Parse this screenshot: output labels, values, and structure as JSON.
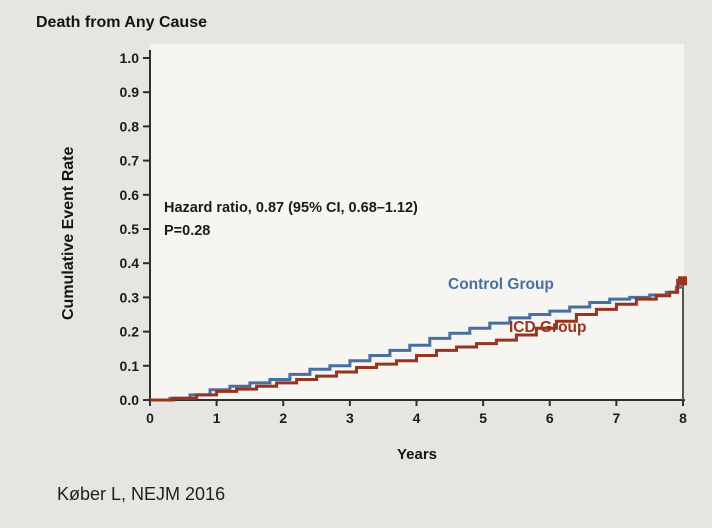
{
  "page": {
    "title": "Death from Any Cause",
    "citation": "Køber L, NEJM 2016"
  },
  "chart_data": {
    "type": "line",
    "subtype": "kaplan-meier-step",
    "title": "Death from Any Cause",
    "xlabel": "Years",
    "ylabel": "Cumulative Event Rate",
    "xlim": [
      0,
      8
    ],
    "ylim": [
      0,
      1.0
    ],
    "x_ticks": [
      0,
      1,
      2,
      3,
      4,
      5,
      6,
      7,
      8
    ],
    "x_tick_labels": [
      "0",
      "1",
      "2",
      "3",
      "4",
      "5",
      "6",
      "7",
      "8"
    ],
    "y_ticks": [
      0,
      0.1,
      0.2,
      0.3,
      0.4,
      0.5,
      0.6,
      0.7,
      0.8,
      0.9,
      1.0
    ],
    "y_tick_labels": [
      "0.0",
      "0.1",
      "0.2",
      "0.3",
      "0.4",
      "0.5",
      "0.6",
      "0.7",
      "0.8",
      "0.9",
      "1.0"
    ],
    "grid": false,
    "legend": "inline-labels",
    "annotation": {
      "line1": "Hazard ratio, 0.87 (95% CI, 0.68–1.12)",
      "line2": "P=0.28"
    },
    "axis_color": "#2e2e2e",
    "series": [
      {
        "name": "Control Group",
        "color": "#4a6f9f",
        "end_marker": false,
        "points": [
          [
            0,
            0
          ],
          [
            0.3,
            0.005
          ],
          [
            0.6,
            0.015
          ],
          [
            0.9,
            0.03
          ],
          [
            1.2,
            0.04
          ],
          [
            1.5,
            0.05
          ],
          [
            1.8,
            0.06
          ],
          [
            2.1,
            0.075
          ],
          [
            2.4,
            0.09
          ],
          [
            2.7,
            0.1
          ],
          [
            3.0,
            0.115
          ],
          [
            3.3,
            0.13
          ],
          [
            3.6,
            0.145
          ],
          [
            3.9,
            0.16
          ],
          [
            4.2,
            0.18
          ],
          [
            4.5,
            0.195
          ],
          [
            4.8,
            0.21
          ],
          [
            5.1,
            0.225
          ],
          [
            5.4,
            0.24
          ],
          [
            5.7,
            0.25
          ],
          [
            6.0,
            0.26
          ],
          [
            6.3,
            0.272
          ],
          [
            6.6,
            0.285
          ],
          [
            6.9,
            0.295
          ],
          [
            7.2,
            0.3
          ],
          [
            7.5,
            0.307
          ],
          [
            7.75,
            0.315
          ],
          [
            7.9,
            0.33
          ],
          [
            8,
            0.33
          ]
        ]
      },
      {
        "name": "ICD Group",
        "color": "#97331e",
        "end_marker": true,
        "points": [
          [
            0,
            0
          ],
          [
            0.35,
            0.005
          ],
          [
            0.7,
            0.015
          ],
          [
            1.0,
            0.025
          ],
          [
            1.3,
            0.032
          ],
          [
            1.6,
            0.04
          ],
          [
            1.9,
            0.05
          ],
          [
            2.2,
            0.06
          ],
          [
            2.5,
            0.07
          ],
          [
            2.8,
            0.082
          ],
          [
            3.1,
            0.095
          ],
          [
            3.4,
            0.105
          ],
          [
            3.7,
            0.115
          ],
          [
            4.0,
            0.13
          ],
          [
            4.3,
            0.145
          ],
          [
            4.6,
            0.155
          ],
          [
            4.9,
            0.165
          ],
          [
            5.2,
            0.175
          ],
          [
            5.5,
            0.19
          ],
          [
            5.8,
            0.21
          ],
          [
            6.1,
            0.23
          ],
          [
            6.4,
            0.25
          ],
          [
            6.7,
            0.265
          ],
          [
            7.0,
            0.28
          ],
          [
            7.3,
            0.295
          ],
          [
            7.6,
            0.305
          ],
          [
            7.8,
            0.315
          ],
          [
            7.92,
            0.35
          ],
          [
            8,
            0.35
          ]
        ]
      }
    ]
  }
}
